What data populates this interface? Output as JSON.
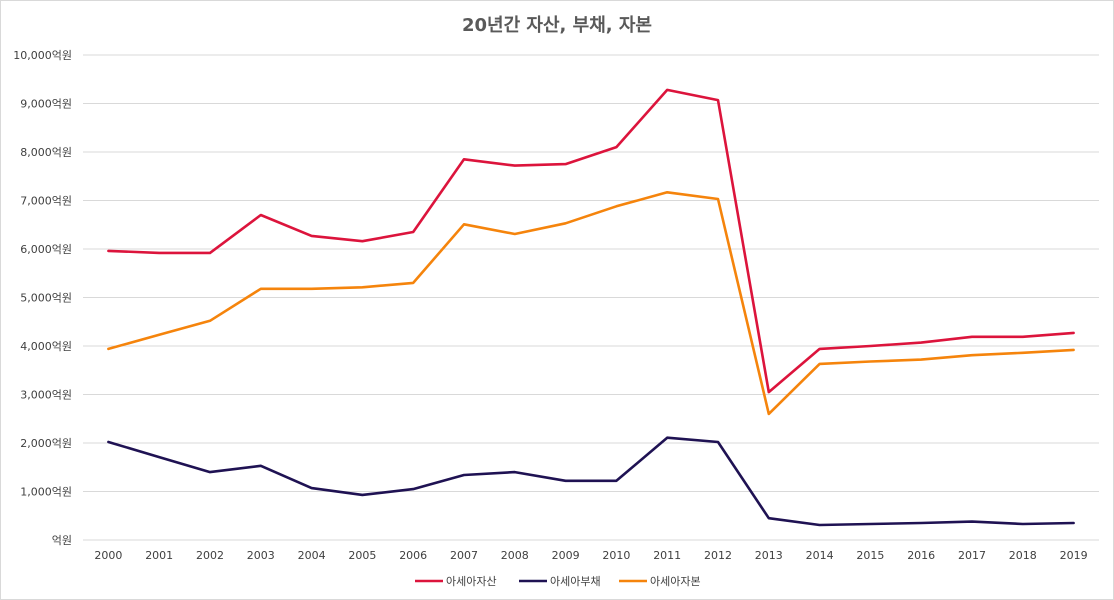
{
  "chart_data": {
    "type": "line",
    "title": "20년간 자산, 부채, 자본",
    "xlabel": "",
    "ylabel": "",
    "categories": [
      "2000",
      "2001",
      "2002",
      "2003",
      "2004",
      "2005",
      "2006",
      "2007",
      "2008",
      "2009",
      "2010",
      "2011",
      "2012",
      "2013",
      "2014",
      "2015",
      "2016",
      "2017",
      "2018",
      "2019"
    ],
    "ylim": [
      0,
      10000
    ],
    "y_ticks": [
      {
        "value": 0,
        "label": "억원"
      },
      {
        "value": 1000,
        "label": "1,000억원"
      },
      {
        "value": 2000,
        "label": "2,000억원"
      },
      {
        "value": 3000,
        "label": "3,000억원"
      },
      {
        "value": 4000,
        "label": "4,000억원"
      },
      {
        "value": 5000,
        "label": "5,000억원"
      },
      {
        "value": 6000,
        "label": "6,000억원"
      },
      {
        "value": 7000,
        "label": "7,000억원"
      },
      {
        "value": 8000,
        "label": "8,000억원"
      },
      {
        "value": 9000,
        "label": "9,000억원"
      },
      {
        "value": 10000,
        "label": "10,000억원"
      }
    ],
    "grid": true,
    "legend_position": "bottom",
    "series": [
      {
        "name": "아세아자산",
        "color": "#dc143c",
        "values": [
          5960,
          5920,
          5920,
          6700,
          6270,
          6160,
          6350,
          7850,
          7720,
          7750,
          8100,
          9280,
          9070,
          3050,
          3940,
          4000,
          4070,
          4190,
          4190,
          4270
        ]
      },
      {
        "name": "아세아부채",
        "color": "#1f1253",
        "values": [
          2020,
          1710,
          1400,
          1530,
          1070,
          930,
          1050,
          1340,
          1400,
          1220,
          1220,
          2110,
          2020,
          450,
          310,
          330,
          350,
          380,
          330,
          350
        ]
      },
      {
        "name": "아세아자본",
        "color": "#f5840c",
        "values": [
          3940,
          4230,
          4520,
          5180,
          5180,
          5210,
          5300,
          6510,
          6310,
          6530,
          6880,
          7170,
          7030,
          2600,
          3630,
          3680,
          3720,
          3810,
          3860,
          3920
        ]
      }
    ]
  }
}
